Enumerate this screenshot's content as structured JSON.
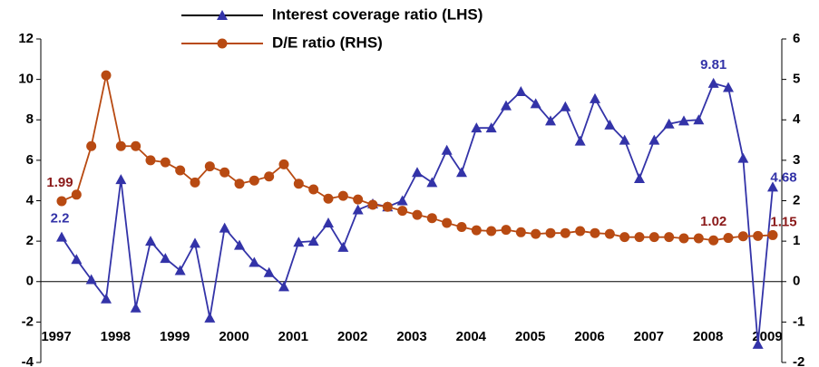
{
  "chart_data": {
    "type": "line",
    "categories": [
      "1997",
      null,
      null,
      null,
      "1998",
      null,
      null,
      null,
      "1999",
      null,
      null,
      null,
      "2000",
      null,
      null,
      null,
      "2001",
      null,
      null,
      null,
      "2002",
      null,
      null,
      null,
      "2003",
      null,
      null,
      null,
      "2004",
      null,
      null,
      null,
      "2005",
      null,
      null,
      null,
      "2006",
      null,
      null,
      null,
      "2007",
      null,
      null,
      null,
      "2008",
      null,
      null,
      null,
      "2009"
    ],
    "series": [
      {
        "name": "Interest coverage ratio (LHS)",
        "color": "#3333a8",
        "marker": "triangle",
        "axis": "y",
        "labels_at": [
          0,
          44,
          48
        ],
        "values": [
          2.2,
          1.1,
          0.1,
          -0.85,
          5.05,
          -1.3,
          2.0,
          1.15,
          0.55,
          1.9,
          -1.8,
          2.65,
          1.8,
          0.95,
          0.45,
          -0.25,
          1.95,
          2.0,
          2.9,
          1.7,
          3.55,
          3.85,
          3.7,
          4.0,
          5.4,
          4.9,
          6.5,
          5.4,
          7.6,
          7.6,
          8.7,
          9.4,
          8.8,
          7.95,
          8.65,
          6.95,
          9.05,
          7.75,
          7.0,
          5.1,
          7.0,
          7.8,
          7.95,
          8.0,
          9.81,
          9.6,
          6.1,
          -3.1,
          4.68
        ]
      },
      {
        "name": "D/E ratio (RHS)",
        "color": "#b84a12",
        "marker": "circle",
        "axis": "y2",
        "labels_at": [
          0,
          44,
          48
        ],
        "values": [
          1.99,
          2.15,
          3.35,
          5.1,
          3.35,
          3.35,
          3.0,
          2.95,
          2.75,
          2.45,
          2.85,
          2.7,
          2.42,
          2.5,
          2.6,
          2.9,
          2.42,
          2.28,
          2.05,
          2.12,
          2.03,
          1.9,
          1.85,
          1.75,
          1.65,
          1.57,
          1.45,
          1.35,
          1.27,
          1.25,
          1.28,
          1.22,
          1.18,
          1.2,
          1.2,
          1.25,
          1.2,
          1.18,
          1.1,
          1.1,
          1.1,
          1.1,
          1.07,
          1.07,
          1.02,
          1.08,
          1.12,
          1.13,
          1.15
        ]
      }
    ],
    "ylim": [
      -4,
      12
    ],
    "yticks": [
      -4,
      -2,
      0,
      2,
      4,
      6,
      8,
      10,
      12
    ],
    "y2lim": [
      -2,
      6
    ],
    "y2ticks": [
      -2,
      -1,
      0,
      1,
      2,
      3,
      4,
      5,
      6
    ],
    "grid": false,
    "legend": "top"
  }
}
